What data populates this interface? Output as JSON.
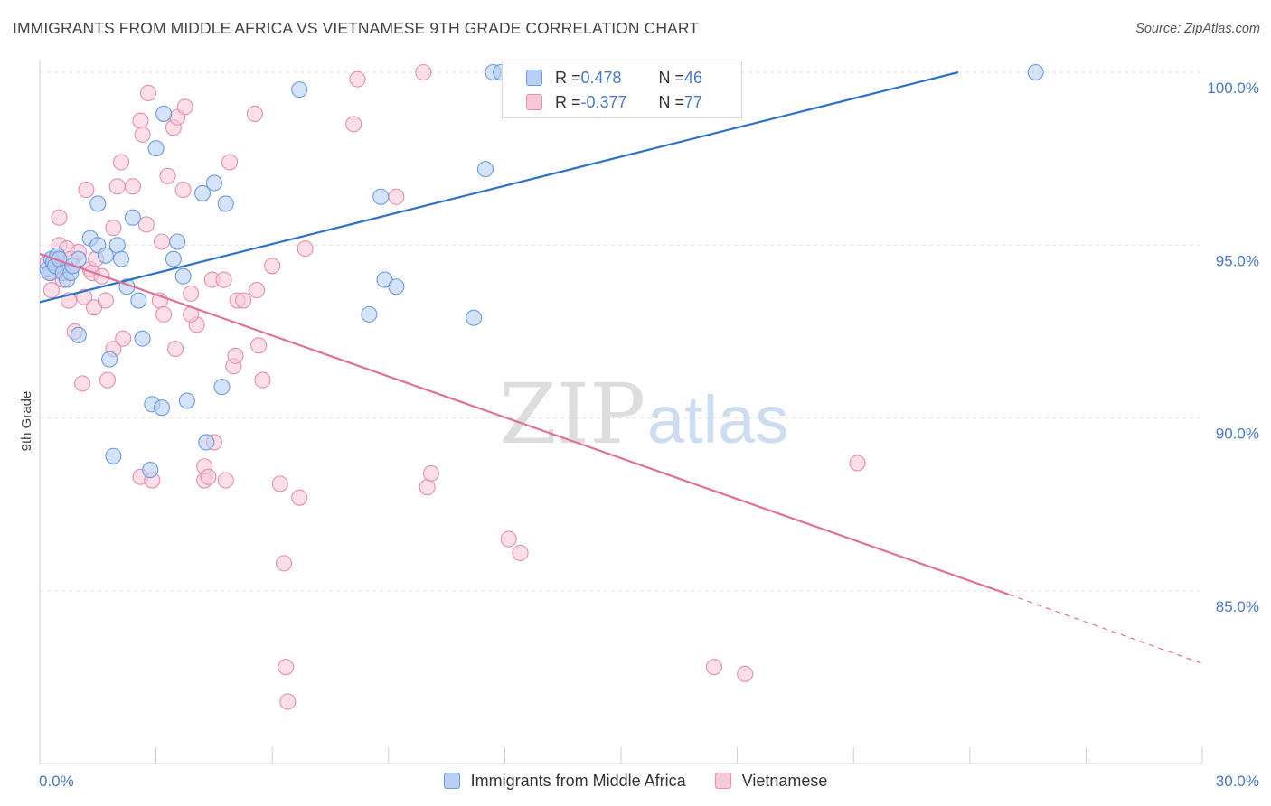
{
  "title": "IMMIGRANTS FROM MIDDLE AFRICA VS VIETNAMESE 9TH GRADE CORRELATION CHART",
  "source": "Source: ZipAtlas.com",
  "watermark": {
    "zip": "ZIP",
    "atlas": "atlas"
  },
  "legend_top": {
    "rows": [
      {
        "r_label": "R = ",
        "r_value": "0.478",
        "n_label": "N = ",
        "n_value": "46"
      },
      {
        "r_label": "R = ",
        "r_value": "-0.377",
        "n_label": "N = ",
        "n_value": "77"
      }
    ]
  },
  "legend_bottom": {
    "items": [
      "Immigrants from Middle Africa",
      "Vietnamese"
    ]
  },
  "colors": {
    "blue_fill": "#b8d0f3",
    "blue_stroke": "#6c9be0",
    "blue_line": "#2f72c9",
    "pink_fill": "#f8c8d8",
    "pink_stroke": "#e58fae",
    "pink_line": "#e0709a",
    "tick_text": "#4a78c2",
    "grid": "#e3e3e3"
  },
  "chart_data": {
    "type": "scatter",
    "title": "IMMIGRANTS FROM MIDDLE AFRICA VS VIETNAMESE 9TH GRADE CORRELATION CHART",
    "xlabel": "",
    "ylabel": "9th Grade",
    "xlim": [
      0,
      30
    ],
    "ylim": [
      80.5,
      100.5
    ],
    "x_tick_labels": [
      "0.0%",
      "30.0%"
    ],
    "y_ticks": [
      85,
      90,
      95,
      100
    ],
    "y_tick_labels": [
      "85.0%",
      "90.0%",
      "95.0%",
      "100.0%"
    ],
    "grid": true,
    "series": [
      {
        "name": "Immigrants from Middle Africa",
        "color": "#6c9be0",
        "r": 0.478,
        "n": 46,
        "trend": {
          "x": [
            0,
            23.7
          ],
          "y": [
            93.35,
            100.0
          ]
        },
        "points": [
          [
            0.2,
            94.3
          ],
          [
            0.25,
            94.2
          ],
          [
            0.3,
            94.6
          ],
          [
            0.35,
            94.5
          ],
          [
            0.4,
            94.4
          ],
          [
            0.45,
            94.7
          ],
          [
            0.5,
            94.6
          ],
          [
            0.6,
            94.2
          ],
          [
            0.7,
            94.0
          ],
          [
            0.8,
            94.2
          ],
          [
            0.85,
            94.4
          ],
          [
            1.0,
            94.6
          ],
          [
            1.0,
            92.4
          ],
          [
            1.3,
            95.2
          ],
          [
            1.5,
            95.0
          ],
          [
            1.5,
            96.2
          ],
          [
            1.7,
            94.7
          ],
          [
            1.8,
            91.7
          ],
          [
            1.9,
            88.9
          ],
          [
            2.0,
            95.0
          ],
          [
            2.1,
            94.6
          ],
          [
            2.25,
            93.8
          ],
          [
            2.4,
            95.8
          ],
          [
            2.55,
            93.4
          ],
          [
            2.65,
            92.3
          ],
          [
            2.85,
            88.5
          ],
          [
            2.9,
            90.4
          ],
          [
            3.0,
            97.8
          ],
          [
            3.15,
            90.3
          ],
          [
            3.2,
            98.8
          ],
          [
            3.45,
            94.6
          ],
          [
            3.55,
            95.1
          ],
          [
            3.7,
            94.1
          ],
          [
            3.8,
            90.5
          ],
          [
            4.2,
            96.5
          ],
          [
            4.3,
            89.3
          ],
          [
            4.5,
            96.8
          ],
          [
            4.7,
            90.9
          ],
          [
            4.8,
            96.2
          ],
          [
            6.7,
            99.5
          ],
          [
            8.5,
            93.0
          ],
          [
            8.8,
            96.4
          ],
          [
            8.9,
            94.0
          ],
          [
            9.2,
            93.8
          ],
          [
            11.2,
            92.9
          ],
          [
            11.5,
            97.2
          ],
          [
            11.7,
            100.0
          ],
          [
            11.9,
            100.0
          ],
          [
            14.4,
            98.9
          ],
          [
            25.7,
            100.0
          ]
        ]
      },
      {
        "name": "Vietnamese",
        "color": "#e58fae",
        "r": -0.377,
        "n": 77,
        "trend": {
          "x": [
            0,
            25.0
          ],
          "y": [
            94.75,
            84.9
          ]
        },
        "trend_dashed": {
          "x": [
            25.0,
            30.0
          ],
          "y": [
            84.9,
            82.9
          ]
        },
        "points": [
          [
            0.2,
            94.5
          ],
          [
            0.3,
            94.2
          ],
          [
            0.3,
            93.7
          ],
          [
            0.4,
            94.6
          ],
          [
            0.5,
            95.0
          ],
          [
            0.5,
            95.8
          ],
          [
            0.7,
            94.9
          ],
          [
            0.7,
            94.3
          ],
          [
            0.75,
            93.4
          ],
          [
            0.8,
            94.6
          ],
          [
            0.9,
            92.5
          ],
          [
            1.0,
            94.8
          ],
          [
            1.1,
            91.0
          ],
          [
            1.15,
            93.5
          ],
          [
            1.2,
            96.6
          ],
          [
            1.3,
            94.3
          ],
          [
            1.35,
            94.2
          ],
          [
            1.4,
            93.2
          ],
          [
            1.45,
            94.6
          ],
          [
            1.7,
            93.4
          ],
          [
            1.75,
            91.1
          ],
          [
            1.9,
            95.5
          ],
          [
            1.9,
            92.0
          ],
          [
            2.0,
            96.7
          ],
          [
            2.1,
            97.4
          ],
          [
            2.15,
            92.3
          ],
          [
            2.4,
            96.7
          ],
          [
            2.6,
            88.3
          ],
          [
            2.6,
            98.6
          ],
          [
            2.65,
            98.2
          ],
          [
            2.75,
            95.6
          ],
          [
            2.8,
            99.4
          ],
          [
            2.9,
            88.2
          ],
          [
            3.1,
            93.4
          ],
          [
            3.15,
            95.1
          ],
          [
            3.2,
            93.0
          ],
          [
            3.3,
            97.0
          ],
          [
            3.45,
            98.4
          ],
          [
            3.5,
            92.0
          ],
          [
            3.55,
            98.7
          ],
          [
            3.7,
            96.6
          ],
          [
            3.75,
            99.0
          ],
          [
            3.9,
            93.6
          ],
          [
            4.05,
            92.7
          ],
          [
            4.25,
            88.2
          ],
          [
            4.25,
            88.6
          ],
          [
            4.35,
            88.3
          ],
          [
            4.45,
            94.0
          ],
          [
            4.5,
            89.3
          ],
          [
            4.75,
            94.0
          ],
          [
            4.9,
            97.4
          ],
          [
            5.0,
            91.5
          ],
          [
            5.05,
            91.8
          ],
          [
            5.1,
            93.4
          ],
          [
            5.25,
            93.4
          ],
          [
            5.6,
            93.7
          ],
          [
            5.65,
            92.1
          ],
          [
            5.75,
            91.1
          ],
          [
            6.0,
            94.4
          ],
          [
            6.2,
            88.1
          ],
          [
            6.3,
            85.8
          ],
          [
            6.35,
            82.8
          ],
          [
            6.4,
            81.8
          ],
          [
            6.7,
            87.7
          ],
          [
            6.85,
            94.9
          ],
          [
            5.55,
            98.8
          ],
          [
            8.1,
            98.5
          ],
          [
            8.2,
            99.8
          ],
          [
            9.2,
            96.4
          ],
          [
            9.9,
            100.0
          ],
          [
            10.0,
            88.0
          ],
          [
            10.1,
            88.4
          ],
          [
            12.1,
            86.5
          ],
          [
            12.4,
            86.1
          ],
          [
            12.8,
            100.0
          ],
          [
            17.4,
            82.8
          ],
          [
            18.2,
            82.6
          ],
          [
            21.1,
            88.7
          ],
          [
            3.9,
            93.0
          ],
          [
            1.6,
            94.1
          ],
          [
            0.6,
            94.0
          ],
          [
            4.8,
            88.2
          ]
        ]
      }
    ]
  }
}
